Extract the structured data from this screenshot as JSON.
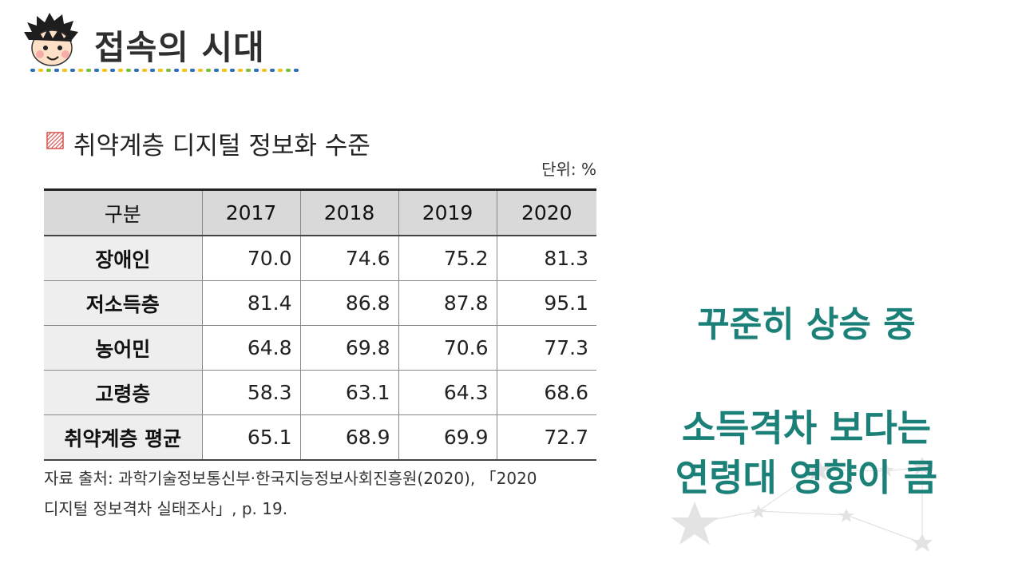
{
  "header": {
    "title": "접속의 시대",
    "mascot_icon": "boy-face-icon",
    "dot_colors": [
      "#2e6fb5",
      "#f0c419",
      "#7bbf3f",
      "#2e6fb5",
      "#f0c419"
    ]
  },
  "table_section": {
    "title": "취약계층 디지털 정보화 수준",
    "title_icon": "hatched-square-icon",
    "unit": "단위: %",
    "columns": [
      "구분",
      "2017",
      "2018",
      "2019",
      "2020"
    ],
    "rows": [
      {
        "label": "장애인",
        "values": [
          "70.0",
          "74.6",
          "75.2",
          "81.3"
        ]
      },
      {
        "label": "저소득층",
        "values": [
          "81.4",
          "86.8",
          "87.8",
          "95.1"
        ]
      },
      {
        "label": "농어민",
        "values": [
          "64.8",
          "69.8",
          "70.6",
          "77.3"
        ]
      },
      {
        "label": "고령층",
        "values": [
          "58.3",
          "63.1",
          "64.3",
          "68.6"
        ]
      },
      {
        "label": "취약계층 평균",
        "values": [
          "65.1",
          "68.9",
          "69.9",
          "72.7"
        ]
      }
    ],
    "source_line1": "자료 출처: 과학기술정보통신부·한국지능정보사회진흥원(2020), 「2020",
    "source_line2": "디지털 정보격차 실태조사」, p. 19."
  },
  "callouts": {
    "line1": "꾸준히 상승 중",
    "line2": "소득격차 보다는",
    "line3": "연령대 영향이 큼",
    "color": "#1a8078"
  },
  "decoration": {
    "stars_icon": "star-constellation-icon"
  }
}
